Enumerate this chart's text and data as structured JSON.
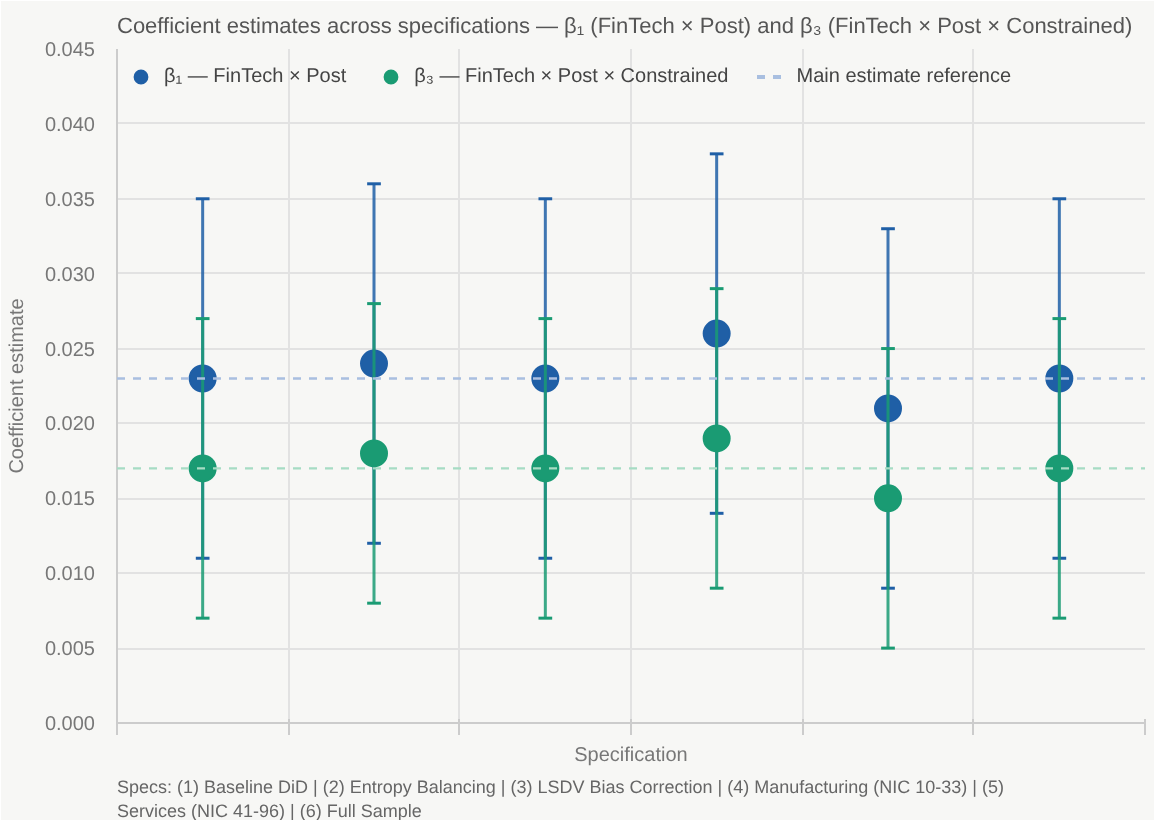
{
  "chart_data": {
    "type": "scatter",
    "title": "Coefficient estimates across specifications — β₁ (FinTech × Post) and β₃ (FinTech × Post × Constrained)",
    "xlabel": "Specification",
    "ylabel": "Coefficient estimate",
    "categories": [
      null,
      null,
      null,
      null,
      null,
      null
    ],
    "series": [
      {
        "name": "β₁ — FinTech × Post",
        "color": "#1f5fa6",
        "values": [
          0.023,
          0.024,
          0.023,
          0.026,
          0.021,
          0.023
        ],
        "errors": [
          [
            0.011,
            0.035
          ],
          [
            0.012,
            0.036
          ],
          [
            0.011,
            0.035
          ],
          [
            0.014,
            0.038
          ],
          [
            0.009,
            0.033
          ],
          [
            0.011,
            0.035
          ]
        ]
      },
      {
        "name": "β₃ — FinTech × Post × Constrained",
        "color": "#1a9b73",
        "values": [
          0.017,
          0.018,
          0.017,
          0.019,
          0.015,
          0.017
        ],
        "errors": [
          [
            0.007,
            0.027
          ],
          [
            0.008,
            0.028
          ],
          [
            0.007,
            0.027
          ],
          [
            0.009,
            0.029
          ],
          [
            0.005,
            0.025
          ],
          [
            0.007,
            0.027
          ]
        ]
      }
    ],
    "ref_lines": [
      {
        "axis": "y",
        "value": 0.023,
        "label": "Main estimate reference",
        "color": "#a9bfe0",
        "line_style": "dashed"
      },
      {
        "axis": "y",
        "value": 0.017,
        "color": "#a6dcc4",
        "line_style": "dashed"
      }
    ],
    "ylim": [
      0,
      0.045
    ],
    "yticks": [
      {
        "value": 0,
        "label": "0.000"
      },
      {
        "value": 0.005,
        "label": "0.005"
      },
      {
        "value": 0.01,
        "label": "0.010"
      },
      {
        "value": 0.015,
        "label": "0.015"
      },
      {
        "value": 0.02,
        "label": "0.020"
      },
      {
        "value": 0.025,
        "label": "0.025"
      },
      {
        "value": 0.03,
        "label": "0.030"
      },
      {
        "value": 0.035,
        "label": "0.035"
      },
      {
        "value": 0.04,
        "label": "0.040"
      },
      {
        "value": 0.045,
        "label": "0.045"
      }
    ],
    "grid": true,
    "legend": "top left",
    "marker": "circle",
    "tick_labels": "y",
    "annotations": [
      "Specs: (1) Baseline DiD | (2) Entropy Balancing | (3) LSDV Bias Correction | (4) Manufacturing (NIC 10-33) | (5) Services (NIC 41-96) | (6) Full Sample"
    ]
  }
}
